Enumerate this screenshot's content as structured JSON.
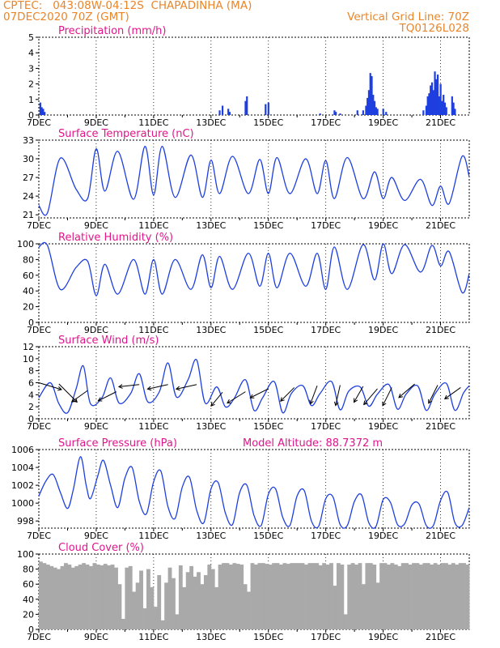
{
  "header": {
    "source": "CPTEC:",
    "coords": "043:08W-04:12S",
    "station": "CHAPADINHA (MA)",
    "init": "07DEC2020 70Z (GMT)",
    "grid_line": "Vertical Grid Line: 70Z",
    "run_id": "TQ0126L028"
  },
  "colors": {
    "header": "#e8862b",
    "title": "#e0168c",
    "series": "#1e3fe0",
    "cloud": "#a9a9a9"
  },
  "chart_data": [
    {
      "type": "bar",
      "title": "Precipitation (mm/h)",
      "ylim": [
        0,
        5
      ],
      "yticks": [
        0,
        1,
        2,
        3,
        4,
        5
      ],
      "xlim": [
        0,
        15
      ],
      "xtick_labels": [
        "7DEC",
        "9DEC",
        "11DEC",
        "13DEC",
        "15DEC",
        "17DEC",
        "19DEC",
        "21DEC"
      ],
      "x": [
        0.05,
        0.1,
        0.15,
        0.2,
        6.3,
        6.4,
        6.6,
        6.65,
        7.2,
        7.25,
        7.9,
        8.0,
        9.8,
        10.3,
        10.35,
        10.5,
        11.1,
        11.3,
        11.4,
        11.45,
        11.5,
        11.55,
        11.6,
        11.65,
        11.7,
        11.75,
        11.8,
        12.0,
        12.1,
        13.4,
        13.5,
        13.55,
        13.6,
        13.65,
        13.7,
        13.75,
        13.8,
        13.85,
        13.9,
        13.95,
        14.0,
        14.05,
        14.1,
        14.15,
        14.2,
        14.4,
        14.45,
        14.5
      ],
      "values": [
        0.8,
        0.5,
        0.4,
        0.2,
        0.3,
        0.6,
        0.4,
        0.2,
        0.9,
        1.2,
        0.7,
        0.8,
        0.1,
        0.3,
        0.2,
        0.1,
        0.3,
        0.3,
        0.6,
        1.1,
        1.6,
        2.7,
        2.5,
        1.3,
        0.9,
        0.5,
        0.4,
        0.4,
        0.2,
        0.3,
        0.6,
        1.2,
        1.4,
        1.9,
        2.1,
        1.6,
        2.8,
        2.3,
        2.6,
        1.2,
        2.0,
        0.9,
        1.3,
        0.8,
        0.5,
        1.2,
        0.8,
        0.4
      ]
    },
    {
      "type": "line",
      "title": "Surface Temperature (nC)",
      "ylim": [
        20.5,
        33
      ],
      "yticks": [
        21,
        24,
        27,
        30,
        33
      ],
      "xlim": [
        0,
        15
      ],
      "xtick_labels": [
        "7DEC",
        "9DEC",
        "11DEC",
        "13DEC",
        "15DEC",
        "17DEC",
        "19DEC",
        "21DEC"
      ],
      "x": [
        0,
        0.3,
        0.75,
        1.3,
        1.7,
        2.0,
        2.3,
        2.75,
        3.3,
        3.7,
        4.0,
        4.3,
        4.75,
        5.3,
        5.7,
        6.0,
        6.3,
        6.75,
        7.3,
        7.7,
        8.0,
        8.3,
        8.75,
        9.3,
        9.7,
        10.0,
        10.3,
        10.75,
        11.3,
        11.7,
        12.0,
        12.3,
        12.75,
        13.3,
        13.7,
        14.0,
        14.3,
        14.75,
        15.0
      ],
      "values": [
        22.5,
        21.3,
        30.1,
        25.1,
        23.6,
        31.6,
        24.8,
        31.2,
        23.5,
        32.0,
        24.2,
        32.0,
        23.8,
        30.6,
        23.8,
        29.8,
        24.4,
        30.4,
        24.4,
        29.9,
        24.4,
        30.2,
        24.4,
        30.0,
        24.4,
        29.7,
        23.6,
        30.2,
        23.6,
        27.9,
        23.6,
        27.0,
        23.3,
        26.7,
        22.5,
        25.6,
        22.8,
        30.4,
        27.1
      ]
    },
    {
      "type": "line",
      "title": "Relative Humidity (%)",
      "ylim": [
        0,
        100
      ],
      "yticks": [
        0,
        20,
        40,
        60,
        80,
        100
      ],
      "xlim": [
        0,
        15
      ],
      "xtick_labels": [
        "7DEC",
        "9DEC",
        "11DEC",
        "13DEC",
        "15DEC",
        "17DEC",
        "19DEC",
        "21DEC"
      ],
      "x": [
        0,
        0.3,
        0.75,
        1.3,
        1.7,
        2.0,
        2.3,
        2.75,
        3.3,
        3.7,
        4.0,
        4.3,
        4.75,
        5.3,
        5.7,
        6.0,
        6.3,
        6.75,
        7.3,
        7.7,
        8.0,
        8.3,
        8.75,
        9.3,
        9.7,
        10.0,
        10.3,
        10.75,
        11.3,
        11.7,
        12.0,
        12.3,
        12.75,
        13.3,
        13.7,
        14.0,
        14.3,
        14.75,
        15.0
      ],
      "values": [
        96,
        98,
        42,
        70,
        78,
        34,
        74,
        36,
        80,
        36,
        80,
        36,
        80,
        42,
        86,
        44,
        84,
        42,
        88,
        46,
        88,
        44,
        88,
        46,
        88,
        42,
        96,
        42,
        99,
        54,
        100,
        62,
        99,
        64,
        98,
        72,
        90,
        38,
        62
      ]
    },
    {
      "type": "line",
      "title": "Surface Wind (m/s)",
      "ylim": [
        0,
        12
      ],
      "yticks": [
        0,
        2,
        4,
        6,
        8,
        10,
        12
      ],
      "xlim": [
        0,
        15
      ],
      "xtick_labels": [
        "7DEC",
        "9DEC",
        "11DEC",
        "13DEC",
        "15DEC",
        "17DEC",
        "19DEC",
        "21DEC"
      ],
      "x": [
        0,
        0.4,
        0.7,
        1.0,
        1.3,
        1.55,
        1.8,
        2.2,
        2.5,
        2.8,
        3.2,
        3.5,
        3.8,
        4.2,
        4.5,
        4.8,
        5.2,
        5.5,
        5.8,
        6.2,
        6.5,
        6.8,
        7.2,
        7.5,
        7.8,
        8.2,
        8.5,
        8.8,
        9.2,
        9.5,
        9.8,
        10.2,
        10.5,
        10.8,
        11.2,
        11.5,
        11.8,
        12.2,
        12.5,
        12.8,
        13.2,
        13.5,
        13.8,
        14.2,
        14.5,
        14.8,
        15.0
      ],
      "values": [
        3.5,
        6.0,
        2.5,
        1.0,
        5.0,
        8.8,
        2.5,
        3.5,
        6.8,
        2.6,
        4.2,
        7.5,
        2.8,
        4.5,
        9.3,
        3.6,
        6.5,
        9.8,
        2.6,
        5.3,
        2.0,
        3.3,
        6.5,
        1.4,
        3.5,
        6.2,
        1.0,
        4.2,
        5.5,
        2.2,
        4.2,
        6.2,
        1.5,
        4.6,
        5.3,
        2.1,
        4.1,
        5.7,
        1.6,
        4.1,
        5.5,
        1.4,
        4.1,
        5.9,
        1.4,
        4.3,
        5.5
      ],
      "vectors": [
        {
          "x": 0.0,
          "y": 6.0,
          "u": 1.0,
          "v": -0.3
        },
        {
          "x": 0.7,
          "y": 5.8,
          "u": 0.8,
          "v": -0.8
        },
        {
          "x": 1.7,
          "y": 4.7,
          "u": -0.7,
          "v": -0.5
        },
        {
          "x": 2.7,
          "y": 4.5,
          "u": -0.8,
          "v": -0.4
        },
        {
          "x": 3.5,
          "y": 5.7,
          "u": -0.9,
          "v": -0.1
        },
        {
          "x": 4.5,
          "y": 5.7,
          "u": -0.9,
          "v": -0.2
        },
        {
          "x": 5.5,
          "y": 5.7,
          "u": -0.9,
          "v": -0.2
        },
        {
          "x": 6.4,
          "y": 4.4,
          "u": -0.5,
          "v": -0.6
        },
        {
          "x": 7.2,
          "y": 4.5,
          "u": -0.8,
          "v": -0.5
        },
        {
          "x": 8.0,
          "y": 5.0,
          "u": -0.8,
          "v": -0.4
        },
        {
          "x": 8.9,
          "y": 5.2,
          "u": -0.6,
          "v": -0.6
        },
        {
          "x": 9.7,
          "y": 5.5,
          "u": -0.3,
          "v": -0.8
        },
        {
          "x": 10.5,
          "y": 5.6,
          "u": -0.2,
          "v": -0.9
        },
        {
          "x": 11.3,
          "y": 5.4,
          "u": -0.4,
          "v": -0.7
        },
        {
          "x": 11.8,
          "y": 5.0,
          "u": -0.6,
          "v": -0.7
        },
        {
          "x": 12.3,
          "y": 5.2,
          "u": -0.4,
          "v": -0.8
        },
        {
          "x": 13.1,
          "y": 5.8,
          "u": -0.7,
          "v": -0.6
        },
        {
          "x": 13.9,
          "y": 5.6,
          "u": -0.4,
          "v": -0.8
        },
        {
          "x": 14.7,
          "y": 5.2,
          "u": -0.7,
          "v": -0.5
        }
      ]
    },
    {
      "type": "line",
      "title": "Surface Pressure (hPa)",
      "annotation": "Model Altitude: 88.7372 m",
      "ylim": [
        997.2,
        1006
      ],
      "yticks": [
        998,
        1000,
        1002,
        1004,
        1006
      ],
      "xlim": [
        0,
        15
      ],
      "xtick_labels": [
        "7DEC",
        "9DEC",
        "11DEC",
        "13DEC",
        "15DEC",
        "17DEC",
        "19DEC",
        "21DEC"
      ],
      "x": [
        0,
        0.25,
        0.5,
        0.75,
        1.0,
        1.2,
        1.45,
        1.65,
        1.8,
        2.05,
        2.25,
        2.5,
        2.75,
        3.0,
        3.25,
        3.5,
        3.75,
        4.0,
        4.25,
        4.5,
        4.75,
        5.0,
        5.25,
        5.5,
        5.75,
        6.0,
        6.25,
        6.5,
        6.75,
        7.0,
        7.25,
        7.5,
        7.75,
        8.0,
        8.25,
        8.5,
        8.75,
        9.0,
        9.25,
        9.5,
        9.75,
        10.0,
        10.25,
        10.5,
        10.75,
        11.0,
        11.25,
        11.5,
        11.75,
        12.0,
        12.25,
        12.5,
        12.75,
        13.0,
        13.25,
        13.5,
        13.75,
        14.0,
        14.25,
        14.5,
        14.75,
        15.0
      ],
      "values": [
        1000.8,
        1002.5,
        1003.2,
        1001.2,
        999.4,
        1001.5,
        1005.2,
        1002.0,
        1000.5,
        1003.0,
        1004.8,
        1002.0,
        999.5,
        1002.8,
        1004.0,
        1000.2,
        998.8,
        1002.4,
        1003.6,
        999.6,
        998.3,
        1001.8,
        1002.9,
        999.2,
        997.8,
        1001.6,
        1002.3,
        998.9,
        997.6,
        1001.2,
        1002.0,
        998.6,
        997.5,
        1001.0,
        1001.6,
        998.4,
        997.5,
        1000.8,
        1001.4,
        998.0,
        997.4,
        1000.5,
        1000.7,
        997.6,
        997.5,
        1000.2,
        1000.9,
        997.8,
        997.4,
        1000.4,
        1000.1,
        997.6,
        997.7,
        999.8,
        999.9,
        997.5,
        997.5,
        1000.3,
        1001.2,
        997.8,
        997.5,
        999.5
      ]
    },
    {
      "type": "bar",
      "title": "Cloud Cover (%)",
      "ylim": [
        0,
        100
      ],
      "yticks": [
        0,
        20,
        40,
        60,
        80,
        100
      ],
      "xlim": [
        0,
        15
      ],
      "xtick_labels": [
        "7DEC",
        "9DEC",
        "11DEC",
        "13DEC",
        "15DEC",
        "17DEC",
        "19DEC",
        "21DEC"
      ],
      "x": [
        0.0,
        0.125,
        0.25,
        0.375,
        0.5,
        0.625,
        0.75,
        0.875,
        1.0,
        1.125,
        1.25,
        1.375,
        1.5,
        1.625,
        1.75,
        1.875,
        2.0,
        2.125,
        2.25,
        2.375,
        2.5,
        2.625,
        2.75,
        2.875,
        3.0,
        3.125,
        3.25,
        3.375,
        3.5,
        3.625,
        3.75,
        3.875,
        4.0,
        4.125,
        4.25,
        4.375,
        4.5,
        4.625,
        4.75,
        4.875,
        5.0,
        5.125,
        5.25,
        5.375,
        5.5,
        5.625,
        5.75,
        5.875,
        6.0,
        6.125,
        6.25,
        6.375,
        6.5,
        6.625,
        6.75,
        6.875,
        7.0,
        7.125,
        7.25,
        7.375,
        7.5,
        7.625,
        7.75,
        7.875,
        8.0,
        8.125,
        8.25,
        8.375,
        8.5,
        8.625,
        8.75,
        8.875,
        9.0,
        9.125,
        9.25,
        9.375,
        9.5,
        9.625,
        9.75,
        9.875,
        10.0,
        10.125,
        10.25,
        10.375,
        10.5,
        10.625,
        10.75,
        10.875,
        11.0,
        11.125,
        11.25,
        11.375,
        11.5,
        11.625,
        11.75,
        11.875,
        12.0,
        12.125,
        12.25,
        12.375,
        12.5,
        12.625,
        12.75,
        12.875,
        13.0,
        13.125,
        13.25,
        13.375,
        13.5,
        13.625,
        13.75,
        13.875,
        14.0,
        14.125,
        14.25,
        14.375,
        14.5,
        14.625,
        14.75,
        14.875
      ],
      "values": [
        90,
        88,
        86,
        84,
        82,
        80,
        84,
        88,
        86,
        82,
        84,
        86,
        88,
        86,
        84,
        88,
        86,
        85,
        87,
        85,
        86,
        82,
        60,
        14,
        82,
        84,
        50,
        62,
        78,
        28,
        80,
        56,
        30,
        72,
        12,
        62,
        82,
        68,
        20,
        85,
        56,
        76,
        84,
        70,
        76,
        60,
        72,
        86,
        80,
        56,
        86,
        88,
        88,
        86,
        88,
        87,
        86,
        60,
        50,
        88,
        86,
        88,
        88,
        87,
        86,
        88,
        88,
        86,
        88,
        87,
        88,
        88,
        88,
        88,
        86,
        88,
        88,
        88,
        85,
        88,
        86,
        88,
        58,
        88,
        86,
        20,
        86,
        88,
        86,
        88,
        60,
        88,
        88,
        86,
        62,
        88,
        88,
        86,
        88,
        86,
        84,
        88,
        88,
        86,
        88,
        88,
        86,
        88,
        88,
        86,
        88,
        86,
        88,
        88,
        86,
        88,
        86,
        88,
        88,
        86
      ]
    }
  ]
}
